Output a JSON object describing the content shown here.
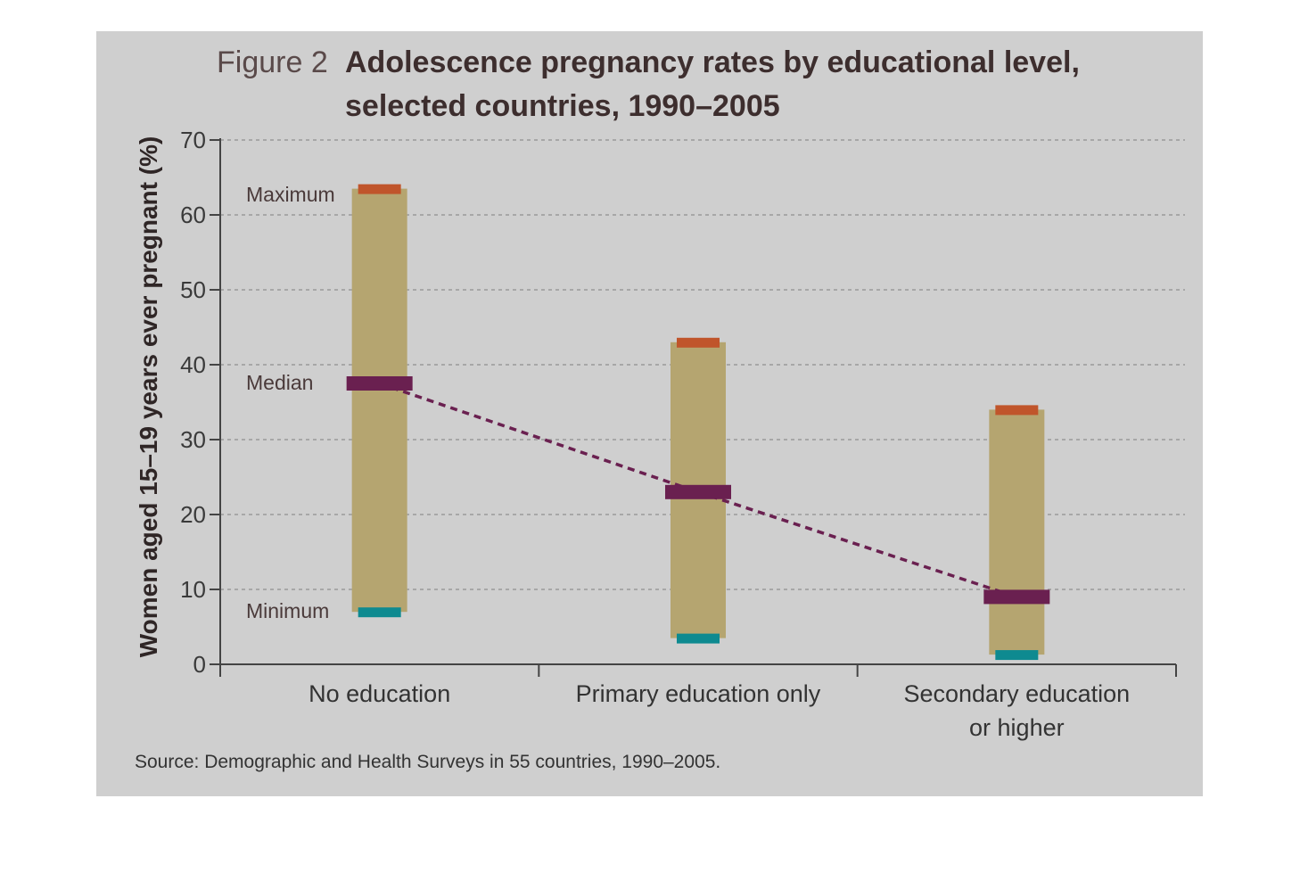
{
  "figure_label": "Figure 2",
  "title_line1": "Adolescence pregnancy rates by educational level,",
  "title_line2": "selected countries, 1990–2005",
  "source": "Source: Demographic and Health Surveys in 55 countries, 1990–2005.",
  "annotations": {
    "maximum": "Maximum",
    "median": "Median",
    "minimum": "Minimum"
  },
  "colors": {
    "range_bar": "#b5a570",
    "max_marker": "#c0552b",
    "median_marker": "#6a2050",
    "min_marker": "#0e8a90",
    "trend_line": "#6a2050",
    "grid": "#9a9a9a",
    "panel": "#cfcfcf"
  },
  "chart_data": {
    "type": "range",
    "title": "Adolescence pregnancy rates by educational level, selected countries, 1990–2005",
    "ylabel": "Women aged 15–19 years ever pregnant (%)",
    "xlabel": "",
    "ylim": [
      0,
      70
    ],
    "yticks": [
      0,
      10,
      20,
      30,
      40,
      50,
      60,
      70
    ],
    "grid": true,
    "categories": [
      {
        "line1": "No education",
        "line2": ""
      },
      {
        "line1": "Primary education only",
        "line2": ""
      },
      {
        "line1": "Secondary education",
        "line2": "or higher"
      }
    ],
    "series": [
      {
        "name": "Maximum",
        "values": [
          63.5,
          43,
          34
        ]
      },
      {
        "name": "Median",
        "values": [
          37.5,
          23,
          9
        ]
      },
      {
        "name": "Minimum",
        "values": [
          7,
          3.5,
          1.3
        ]
      }
    ],
    "trend": "dashed line connecting medians"
  }
}
